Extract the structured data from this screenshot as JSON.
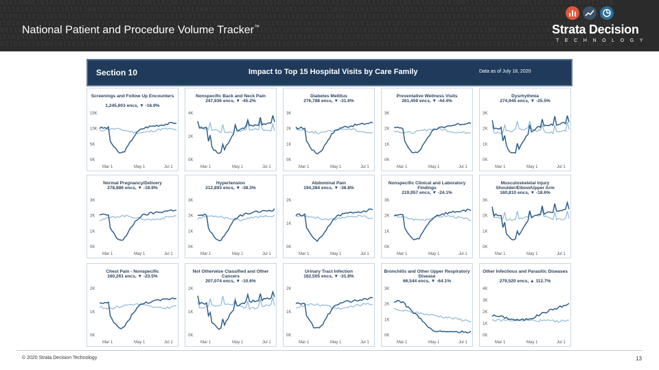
{
  "header": {
    "title": "National Patient and Procedure Volume Tracker",
    "tm": "™",
    "brand": "Strata Decision",
    "brand_sub": "TECHNOLOGY",
    "binary_rows": [
      "01010000101010100111011010110101001101001110101101000101101011010110101101011010001110101100101101010100111010110101001101101010101011010",
      "10110101101011101011001010110011010110101101100101010111101101010011010101101001101101011010111101011010010110101101011010110101101010101",
      "01001110101010010100110101101010101001110101011010100101011010101101011010100101101011010101001011101101011010010101101010110101001101010",
      "11010101010111010101010101010011010101010101011101010101011011010101101010101010101101101010101010110101010101101011010101011010101010110",
      "00110101101001010110101011010100101101011010110010101101011010110101001010110110101011010101010110101011010110010101101011010101001101010",
      "10101010110101101011101010100101011010101101010101101010101101101010101011010101010101101010110101101010101101010110101010110101010101011",
      "01101011010010110101010011010101101011010101001011010101101010110101010010110101101010110100101010101101010101101010110101101010101101010"
    ],
    "logo_colors": [
      "#e0583a",
      "#3f5166",
      "#2d6f9a"
    ]
  },
  "section": {
    "label": "Section 10",
    "title": "Impact to Top 15 Hospital Visits by Care Family",
    "date": "Data as of July 18, 2020"
  },
  "x_ticks": [
    "Mar 1",
    "May 1",
    "Jul 1"
  ],
  "colors": {
    "dark": "#2d5c87",
    "light": "#8fb8d6",
    "red": "#c0392b",
    "navy": "#1f3a5a"
  },
  "panels": [
    {
      "title": "Screenings and Follow Up Encounters",
      "sub": "1,245,603 encs, ▼ -16.9%",
      "yticks": [
        "15K",
        "10K",
        "5K",
        "0K"
      ]
    },
    {
      "title": "Nonspecific Back and Neck Pain",
      "sub": "247,936 encs, ▼ -45.2%",
      "yticks": [
        "4K",
        "2K",
        "0K"
      ]
    },
    {
      "title": "Diabetes Mellitus",
      "sub": "276,788 encs, ▼ -31.6%",
      "yticks": [
        "3K",
        "2K",
        "1K",
        "0K"
      ]
    },
    {
      "title": "Preventative Wellness Visits",
      "sub": "261,459 encs, ▼ -44.4%",
      "yticks": [
        "3K",
        "2K",
        "1K",
        "0K"
      ]
    },
    {
      "title": "Dysrhythmia",
      "sub": "274,945 encs, ▼ -25.5%",
      "yticks": [
        "3K",
        "2K",
        "1K",
        "0K"
      ]
    },
    {
      "title": "Normal Pregnancy/Delivery",
      "sub": "278,886 encs, ▼ -18.9%",
      "yticks": [
        "3K",
        "2K",
        "1K",
        "0K"
      ]
    },
    {
      "title": "Hypertension",
      "sub": "212,893 encs, ▼ -38.3%",
      "yticks": [
        "3K",
        "2K",
        "1K",
        "0K"
      ]
    },
    {
      "title": "Abdominal Pain",
      "sub": "194,384 encs, ▼ -36.8%",
      "yticks": [
        "2K",
        "1K",
        "0K"
      ]
    },
    {
      "title": "Nonspecific Clinical and Laboratory Findings",
      "sub": "219,957 encs, ▼ -24.1%",
      "yticks": [
        "3K",
        "2K",
        "1K",
        "0K"
      ]
    },
    {
      "title": "Musculoskeletal Injury Shoulder/Elbow/Upper Arm",
      "sub": "160,810 encs, ▼ -18.6%",
      "yticks": [
        "3K",
        "2K",
        "1K",
        "0K"
      ]
    },
    {
      "title": "Chest Pain - Nonspecific",
      "sub": "160,261 encs, ▼ -23.5%",
      "yticks": [
        "2K",
        "1K",
        "0K"
      ]
    },
    {
      "title": "Not Otherwise Classified and Other Cancers",
      "sub": "207,074 encs, ▼ -10.6%",
      "yticks": [
        "2K",
        "1K",
        "0K"
      ]
    },
    {
      "title": "Urinary Tract Infection",
      "sub": "162,505 encs, ▼ -31.8%",
      "yticks": [
        "2K",
        "1K",
        "0K"
      ]
    },
    {
      "title": "Bronchitis and Other Upper Respiratory Disease",
      "sub": "66,544 encs, ▼ -64.1%",
      "yticks": [
        "3K",
        "2K",
        "1K",
        "0K"
      ]
    },
    {
      "title": "Other Infectious and Parasitic Diseases",
      "sub": "279,520 encs, ▲ 112.7%",
      "yticks": [
        "4K",
        "3K",
        "2K",
        "1K",
        "0K"
      ]
    }
  ],
  "footer": {
    "copyright": "© 2020 Strata Decision Technology",
    "page": "13"
  }
}
